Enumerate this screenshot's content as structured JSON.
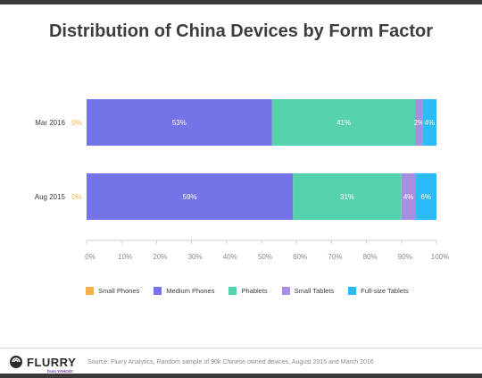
{
  "title": "Distribution of China Devices by Form Factor",
  "chart_data": {
    "type": "bar",
    "orientation": "horizontal",
    "stacked": true,
    "title": "Distribution of China Devices by Form Factor",
    "categories": [
      "Mar 2016",
      "Aug 2015"
    ],
    "series": [
      {
        "name": "Small Phones",
        "color": "#f4b24f",
        "values": [
          0,
          0
        ],
        "labels": [
          "0%",
          "0%"
        ]
      },
      {
        "name": "Medium Phones",
        "color": "#7473e8",
        "values": [
          53,
          59
        ],
        "labels": [
          "53%",
          "59%"
        ]
      },
      {
        "name": "Phablets",
        "color": "#55d1ae",
        "values": [
          41,
          31
        ],
        "labels": [
          "41%",
          "31%"
        ]
      },
      {
        "name": "Small Tablets",
        "color": "#a88ee1",
        "values": [
          2,
          4
        ],
        "labels": [
          "2%",
          "4%"
        ]
      },
      {
        "name": "Full-size Tablets",
        "color": "#2bbbf5",
        "values": [
          4,
          6
        ],
        "labels": [
          "4%",
          "6%"
        ]
      }
    ],
    "xlim": [
      0,
      100
    ],
    "xticks": [
      "0%",
      "10%",
      "20%",
      "30%",
      "40%",
      "50%",
      "60%",
      "70%",
      "80%",
      "90%",
      "100%"
    ],
    "legend_position": "bottom-left",
    "grid": false
  },
  "footer": {
    "logo_text": "FLURRY",
    "logo_sub": "from YAHOO!",
    "source": "Source: Flurry Analytics, Random sample of 90k Chinese owned devices, August 2015 and March 2016"
  }
}
